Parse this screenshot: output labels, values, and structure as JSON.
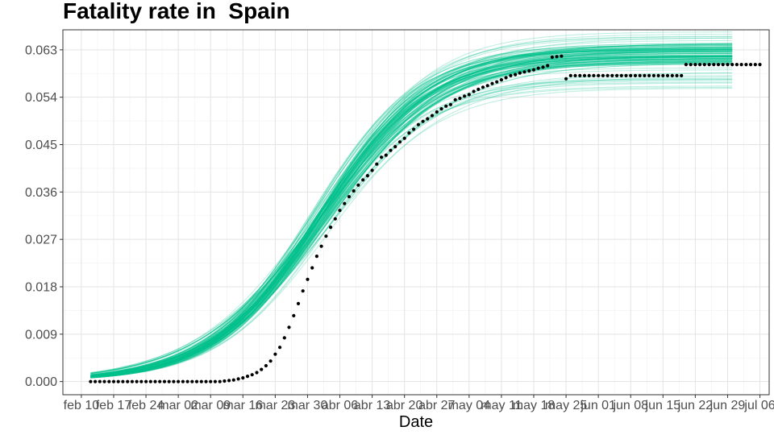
{
  "chart_data": {
    "type": "scatter",
    "title": "Fatality rate in  Spain",
    "xlabel": "Date",
    "ylabel": "",
    "x_start": "2020-02-10",
    "xlim": [
      "2020-02-06",
      "2020-07-08"
    ],
    "ylim": [
      -0.0025,
      0.0668
    ],
    "x_tick_labels": [
      "feb 10",
      "feb 17",
      "feb 24",
      "mar 02",
      "mar 09",
      "mar 16",
      "mar 23",
      "mar 30",
      "abr 06",
      "abr 13",
      "abr 20",
      "abr 27",
      "may 04",
      "may 11",
      "may 18",
      "may 25",
      "jun 01",
      "jun 08",
      "jun 15",
      "jun 22",
      "jun 29",
      "jul 06"
    ],
    "y_ticks": [
      0.0,
      0.009,
      0.018,
      0.027,
      0.036,
      0.045,
      0.054,
      0.063
    ],
    "y_tick_labels": [
      "0.000",
      "0.009",
      "0.018",
      "0.027",
      "0.036",
      "0.045",
      "0.054",
      "0.063"
    ],
    "grid": true,
    "series": [
      {
        "type": "scatter",
        "color": "#000000",
        "x_start": "2020-02-12",
        "step_days": 1,
        "y": [
          0,
          0,
          0,
          0,
          0,
          0,
          0,
          0,
          0,
          0,
          0,
          0,
          0,
          0,
          0,
          0,
          0,
          0,
          0,
          0,
          0,
          0,
          0,
          0,
          0,
          0,
          0,
          0,
          0,
          0.0001,
          0.0002,
          0.0003,
          0.0005,
          0.0007,
          0.001,
          0.0013,
          0.0017,
          0.0023,
          0.003,
          0.0039,
          0.0052,
          0.0065,
          0.0083,
          0.0103,
          0.0125,
          0.0148,
          0.0172,
          0.0194,
          0.0216,
          0.0238,
          0.0257,
          0.0276,
          0.0293,
          0.0309,
          0.0325,
          0.0338,
          0.0351,
          0.0362,
          0.0373,
          0.0383,
          0.0391,
          0.0401,
          0.0413,
          0.0426,
          0.043,
          0.0439,
          0.0446,
          0.0455,
          0.0462,
          0.0472,
          0.0479,
          0.0488,
          0.0494,
          0.0499,
          0.0505,
          0.0512,
          0.0518,
          0.0523,
          0.0526,
          0.0535,
          0.0538,
          0.0542,
          0.0545,
          0.0551,
          0.0555,
          0.0559,
          0.0562,
          0.0566,
          0.0569,
          0.0573,
          0.0577,
          0.0581,
          0.0583,
          0.0586,
          0.0588,
          0.059,
          0.0592,
          0.0595,
          0.0597,
          0.06,
          0.0616,
          0.0617,
          0.0618,
          0.0575,
          0.0581,
          0.0581,
          0.0581,
          0.0581,
          0.0581,
          0.0581,
          0.0581,
          0.0581,
          0.0581,
          0.0581,
          0.0581,
          0.0581,
          0.0581,
          0.0581,
          0.0581,
          0.0581,
          0.0581,
          0.0581,
          0.0581,
          0.0581,
          0.0581,
          0.0581,
          0.0581,
          0.0581,
          0.0581,
          0.0602,
          0.0602,
          0.0602,
          0.0602,
          0.0602,
          0.0602,
          0.0602,
          0.0602,
          0.0602,
          0.0602,
          0.0602,
          0.0602,
          0.0602,
          0.0602,
          0.0602,
          0.0602,
          0.0602
        ]
      },
      {
        "type": "fit-bundle",
        "color": "#00c08b",
        "x_range": [
          "2020-02-12",
          "2020-06-30"
        ],
        "midpoint_range": [
          "2020-03-29",
          "2020-04-04"
        ],
        "growth_rate_range": [
          0.055,
          0.09
        ],
        "asymptote_range": [
          0.0555,
          0.0665
        ],
        "count": 90
      }
    ]
  }
}
